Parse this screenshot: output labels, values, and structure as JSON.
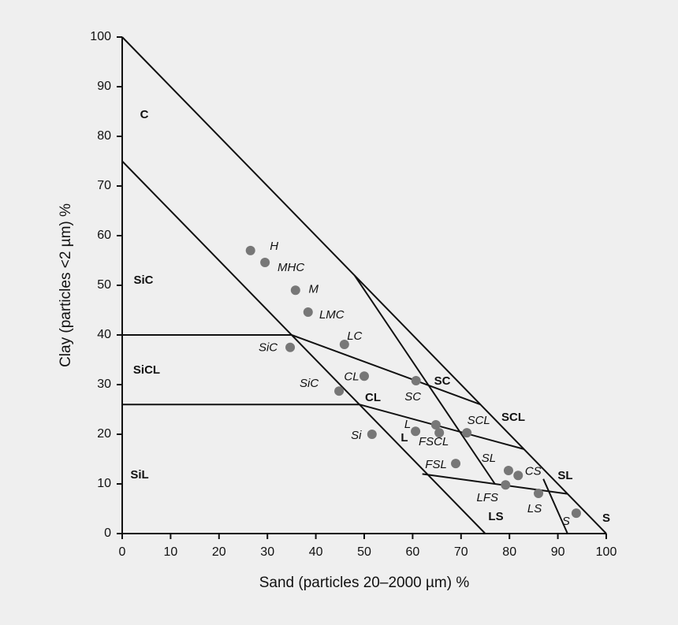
{
  "chart_data": {
    "type": "scatter",
    "x_label": "Sand (particles 20–2000 µm) %",
    "y_label": "Clay (particles <2 µm) %",
    "xlim": [
      0,
      100
    ],
    "ylim": [
      0,
      100
    ],
    "xticks": [
      0,
      10,
      20,
      30,
      40,
      50,
      60,
      70,
      80,
      90,
      100
    ],
    "yticks": [
      0,
      10,
      20,
      30,
      40,
      50,
      60,
      70,
      80,
      90,
      100
    ],
    "marker_color": "#777777",
    "line_color": "#111111",
    "x": [
      26.5,
      29.5,
      35.8,
      38.4,
      45.9,
      34.7,
      50.0,
      44.8,
      60.7,
      60.6,
      64.8,
      65.5,
      51.6,
      71.2,
      68.9,
      79.8,
      81.8,
      79.2,
      86.0,
      93.8
    ],
    "values": [
      57.0,
      54.6,
      49.0,
      44.6,
      38.1,
      37.5,
      31.7,
      28.7,
      30.8,
      20.6,
      21.9,
      20.3,
      20.0,
      20.3,
      14.1,
      12.7,
      11.7,
      9.8,
      8.1,
      4.1
    ],
    "point_labels": [
      "H",
      "MHC",
      "M",
      "LMC",
      "LC",
      "SiC",
      "CL",
      "SiC",
      "SC",
      "L",
      null,
      "FSCL",
      "Si",
      "SCL",
      "FSL",
      "SL",
      "CS",
      "LFS",
      "LS",
      "S"
    ],
    "boundaries": [
      [
        [
          0,
          100
        ],
        [
          100,
          0
        ]
      ],
      [
        [
          0,
          75
        ],
        [
          75,
          0
        ]
      ],
      [
        [
          0,
          40
        ],
        [
          35,
          40
        ]
      ],
      [
        [
          0,
          26
        ],
        [
          49,
          26
        ]
      ],
      [
        [
          35,
          40
        ],
        [
          74,
          26
        ]
      ],
      [
        [
          49,
          26
        ],
        [
          83,
          17
        ]
      ],
      [
        [
          62,
          12
        ],
        [
          92,
          8
        ]
      ],
      [
        [
          48,
          52
        ],
        [
          77,
          10
        ]
      ],
      [
        [
          87,
          11
        ],
        [
          92,
          0
        ]
      ]
    ],
    "region_labels": [
      "C",
      "SiC",
      "SiCL",
      "SiL",
      "CL",
      "SC",
      "SCL",
      "L",
      "LS",
      "SL",
      "S"
    ]
  }
}
